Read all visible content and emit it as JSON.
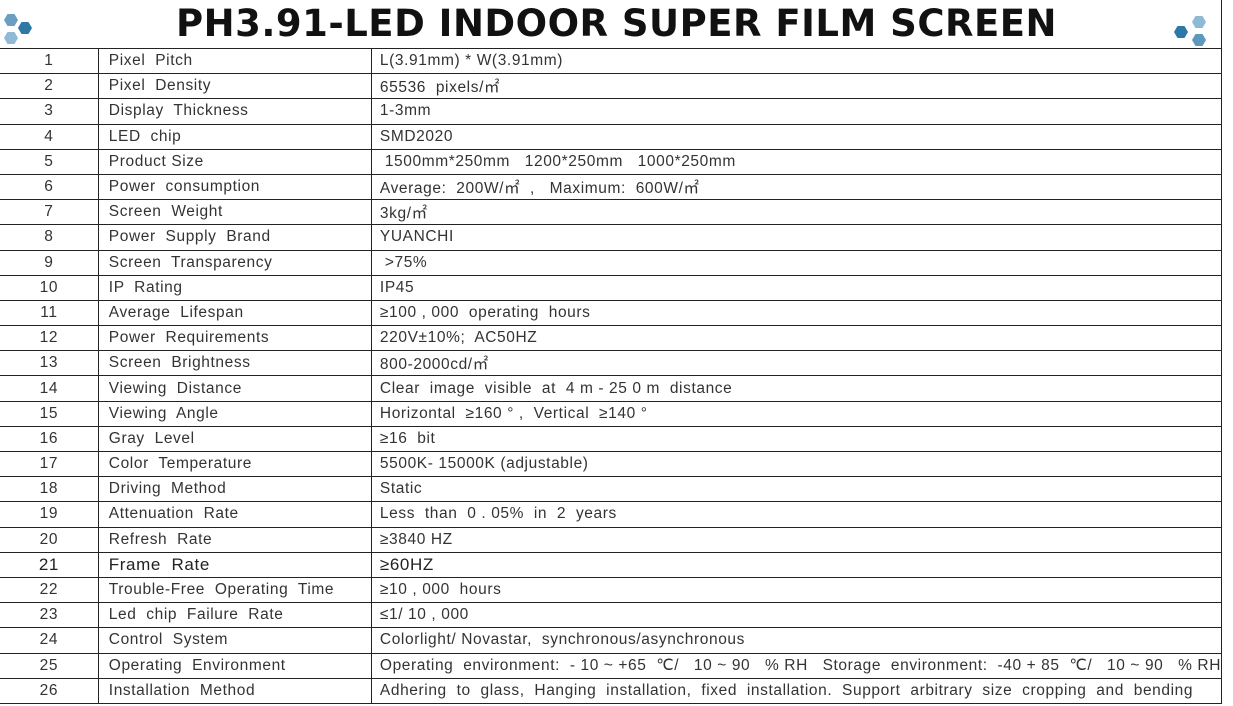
{
  "title": "PH3.91-LED  INDOOR  SUPER FILM SCREEN",
  "colors": {
    "logo_dark": "#3a7fa8",
    "logo_light": "#8fb9d4",
    "logo_mid": "#5d98bd"
  },
  "rows": [
    {
      "n": "1",
      "k": "Pixel  Pitch",
      "v": "L(3.91mm) * W(3.91mm)"
    },
    {
      "n": "2",
      "k": "Pixel  Density",
      "v": "65536  pixels/㎡"
    },
    {
      "n": "3",
      "k": "Display  Thickness",
      "v": "1-3mm"
    },
    {
      "n": "4",
      "k": "LED  chip",
      "v": "SMD2020"
    },
    {
      "n": "5",
      "k": "Product Size",
      "v": " 1500mm*250mm   1200*250mm   1000*250mm"
    },
    {
      "n": "6",
      "k": "Power  consumption",
      "v": "Average:  200W/㎡  ,   Maximum:  600W/㎡"
    },
    {
      "n": "7",
      "k": "Screen  Weight",
      "v": "3kg/㎡"
    },
    {
      "n": "8",
      "k": "Power  Supply  Brand",
      "v": "YUANCHI"
    },
    {
      "n": "9",
      "k": "Screen  Transparency",
      "v": " >75%"
    },
    {
      "n": "10",
      "k": "IP  Rating",
      "v": "IP45"
    },
    {
      "n": "11",
      "k": "Average  Lifespan",
      "v": "≥100 , 000  operating  hours"
    },
    {
      "n": "12",
      "k": "Power  Requirements",
      "v": "220V±10%;  AC50HZ"
    },
    {
      "n": "13",
      "k": "Screen  Brightness",
      "v": "800-2000cd/㎡"
    },
    {
      "n": "14",
      "k": "Viewing  Distance",
      "v": "Clear  image  visible  at  4 m - 25 0 m  distance"
    },
    {
      "n": "15",
      "k": "Viewing  Angle",
      "v": "Horizontal  ≥160 ° ,  Vertical  ≥140 °"
    },
    {
      "n": "16",
      "k": "Gray  Level",
      "v": "≥16  bit"
    },
    {
      "n": "17",
      "k": "Color  Temperature",
      "v": "5500K- 15000K (adjustable)"
    },
    {
      "n": "18",
      "k": "Driving  Method",
      "v": "Static"
    },
    {
      "n": "19",
      "k": "Attenuation  Rate",
      "v": "Less  than  0 . 05%  in  2  years"
    },
    {
      "n": "20",
      "k": "Refresh  Rate",
      "v": "≥3840 HZ"
    },
    {
      "n": "21",
      "k": "Frame  Rate",
      "v": "≥60HZ",
      "big": true
    },
    {
      "n": "22",
      "k": "Trouble-Free  Operating  Time",
      "v": "≥10 , 000  hours"
    },
    {
      "n": "23",
      "k": "Led  chip  Failure  Rate",
      "v": "≤1/ 10 , 000"
    },
    {
      "n": "24",
      "k": "Control  System",
      "v": "Colorlight/ Novastar,  synchronous/asynchronous"
    },
    {
      "n": "25",
      "k": "Operating  Environment",
      "v": "Operating  environment:  - 10 ~ +65  ℃/   10 ~ 90   % RH   Storage  environment:  -40 + 85  ℃/   10 ~ 90   % RH"
    },
    {
      "n": "26",
      "k": "Installation  Method",
      "v": "Adhering  to  glass,  Hanging  installation,  fixed  installation.  Support  arbitrary  size  cropping  and  bending"
    }
  ]
}
